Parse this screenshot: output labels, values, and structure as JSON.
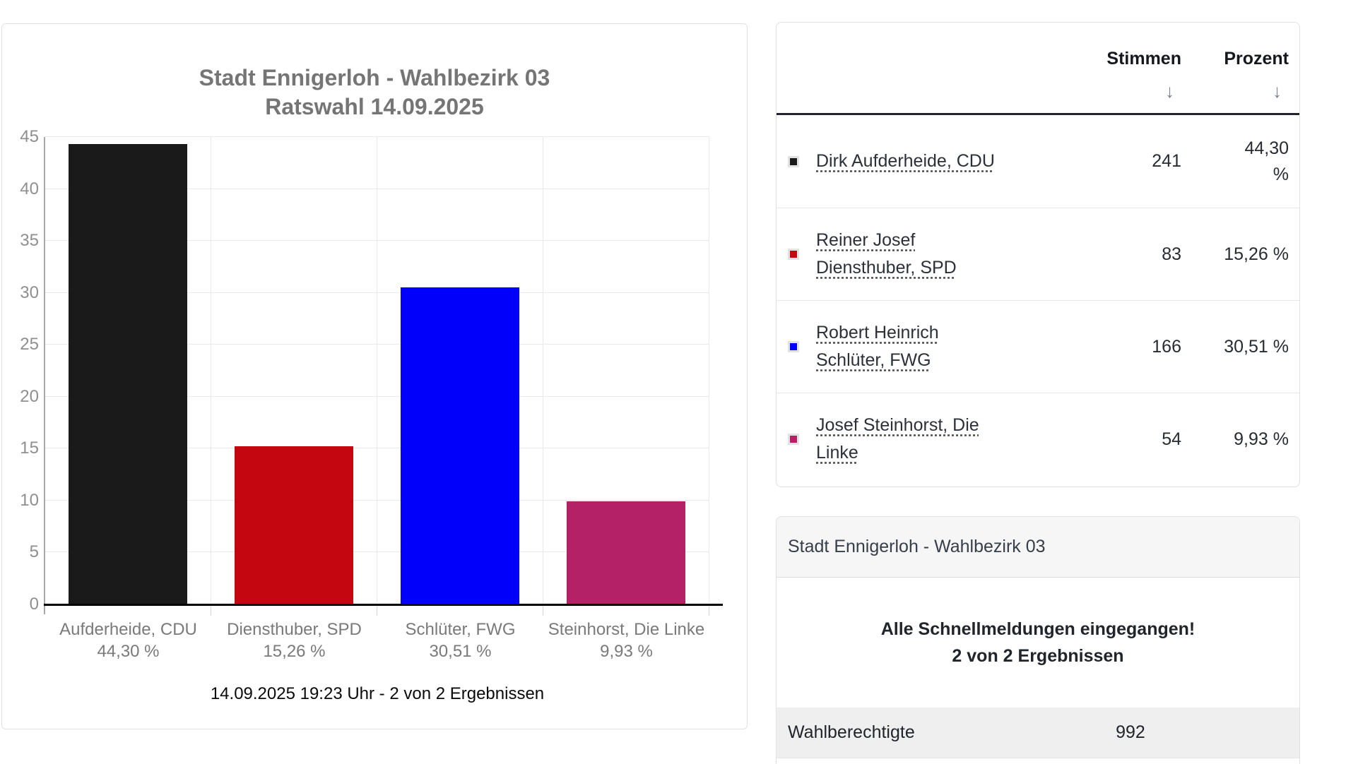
{
  "chart_data": {
    "type": "bar",
    "title_lines": [
      "Stadt Ennigerloh - Wahlbezirk 03",
      "Ratswahl 14.09.2025"
    ],
    "categories": [
      "Aufderheide, CDU",
      "Diensthuber, SPD",
      "Schlüter, FWG",
      "Steinhorst, Die Linke"
    ],
    "values": [
      44.3,
      15.26,
      30.51,
      9.93
    ],
    "value_labels": [
      "44,30 %",
      "15,26 %",
      "30,51 %",
      "9,93 %"
    ],
    "bar_colors": [
      "#1a1a1a",
      "#c3060f",
      "#0000fb",
      "#b52167"
    ],
    "ylim": [
      0,
      45
    ],
    "y_ticks": [
      0,
      5,
      10,
      15,
      20,
      25,
      30,
      35,
      40,
      45
    ],
    "grid": true,
    "legend_position": "none",
    "footer": "14.09.2025 19:23 Uhr - 2 von 2 Ergebnissen"
  },
  "results_table": {
    "header": {
      "votes_label": "Stimmen",
      "percent_label": "Prozent",
      "sort_glyph": "↓"
    },
    "rows": [
      {
        "name": "Dirk Aufderheide, CDU",
        "votes": "241",
        "percent": "44,30 %",
        "color": "#1a1a1a"
      },
      {
        "name": "Reiner Josef Diensthuber, SPD",
        "votes": "83",
        "percent": "15,26 %",
        "color": "#c3060f"
      },
      {
        "name": "Robert Heinrich Schlüter, FWG",
        "votes": "166",
        "percent": "30,51 %",
        "color": "#0000fb"
      },
      {
        "name": "Josef Steinhorst, Die Linke",
        "votes": "54",
        "percent": "9,93 %",
        "color": "#b52167"
      }
    ]
  },
  "summary": {
    "title": "Stadt Ennigerloh - Wahlbezirk 03",
    "status_line1": "Alle Schnellmeldungen eingegangen!",
    "status_line2": "2 von 2 Ergebnissen",
    "stats": [
      {
        "label": "Wahlberechtigte",
        "value": "992"
      }
    ]
  }
}
